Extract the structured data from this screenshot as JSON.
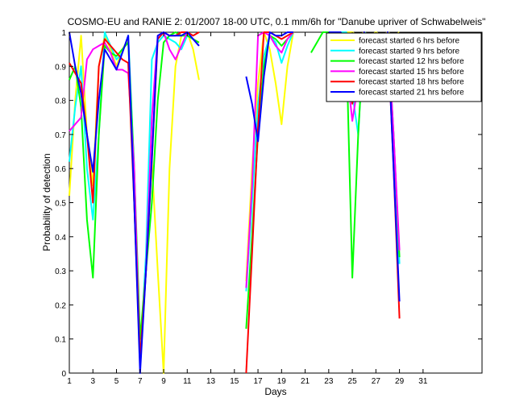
{
  "chart_data": {
    "type": "line",
    "title": "COSMO-EU and RANIE 2: 01/2007 18-00 UTC, 0.1 mm/6h for \"Danube upriver of Schwabelweis\"",
    "xlabel": "Days",
    "ylabel": "Probability of detection",
    "xlim": [
      1,
      36
    ],
    "ylim": [
      0,
      1
    ],
    "xticks": [
      1,
      3,
      5,
      7,
      9,
      11,
      13,
      15,
      17,
      19,
      21,
      23,
      25,
      27,
      29,
      31
    ],
    "yticks": [
      0,
      0.1,
      0.2,
      0.3,
      0.4,
      0.5,
      0.6,
      0.7,
      0.8,
      0.9,
      1
    ],
    "grid": false,
    "legend_position": "top-right",
    "x": [
      1,
      1.5,
      2,
      2.5,
      3,
      3.5,
      4,
      4.5,
      5,
      5.5,
      6,
      6.5,
      7,
      7.5,
      8,
      8.5,
      9,
      9.5,
      10,
      10.5,
      11,
      11.5,
      12,
      12.5,
      13,
      13.5,
      14,
      14.5,
      15,
      15.5,
      16,
      16.5,
      17,
      17.5,
      18,
      18.5,
      19,
      19.5,
      20,
      20.5,
      21,
      21.5,
      22,
      22.5,
      23,
      23.5,
      24,
      24.5,
      25,
      25.5,
      26,
      26.5,
      27,
      27.5,
      28,
      28.5,
      29,
      29.5,
      30,
      30.5,
      31
    ],
    "series": [
      {
        "name": "forecast started 6 hrs before",
        "color": "#ffff00",
        "values": [
          0.52,
          0.8,
          0.99,
          0.7,
          0.55,
          0.9,
          0.99,
          0.95,
          0.9,
          0.95,
          0.98,
          0.5,
          0.03,
          0.3,
          0.62,
          0.3,
          0.0,
          0.6,
          0.9,
          0.99,
          1.0,
          0.95,
          0.86,
          null,
          null,
          null,
          null,
          null,
          null,
          null,
          0.27,
          0.6,
          0.85,
          1.0,
          0.95,
          0.85,
          0.73,
          0.9,
          1.0,
          null,
          null,
          null,
          null,
          null,
          1.0,
          1.0,
          1.0,
          1.0,
          1.0,
          0.99,
          1.0,
          0.99,
          1.0,
          0.99,
          1.0,
          0.99,
          1.0,
          null,
          null,
          null,
          0.96
        ]
      },
      {
        "name": "forecast started 9 hrs before",
        "color": "#00ffff",
        "values": [
          0.62,
          0.78,
          0.9,
          0.6,
          0.45,
          0.7,
          1.0,
          0.96,
          0.92,
          0.94,
          0.99,
          0.6,
          0.04,
          0.35,
          0.92,
          0.97,
          0.99,
          0.98,
          0.97,
          0.95,
          0.99,
          0.98,
          0.96,
          null,
          null,
          null,
          null,
          null,
          null,
          null,
          0.24,
          0.5,
          0.79,
          0.93,
          0.99,
          0.97,
          0.91,
          0.96,
          1.0,
          null,
          null,
          null,
          null,
          null,
          1.0,
          1.0,
          1.0,
          1.0,
          0.82,
          0.7,
          1.0,
          0.99,
          0.97,
          0.98,
          1.0,
          0.7,
          0.32,
          null,
          null,
          null,
          null
        ]
      },
      {
        "name": "forecast started 12 hrs before",
        "color": "#00ff00",
        "values": [
          0.86,
          0.9,
          0.78,
          0.45,
          0.28,
          0.7,
          0.96,
          0.94,
          0.93,
          0.95,
          0.97,
          0.6,
          0.1,
          0.3,
          0.5,
          0.8,
          0.97,
          0.99,
          1.0,
          0.99,
          0.99,
          0.98,
          0.97,
          null,
          null,
          null,
          null,
          null,
          null,
          null,
          0.13,
          0.4,
          0.7,
          0.9,
          0.99,
          0.98,
          0.96,
          0.98,
          1.0,
          null,
          null,
          0.94,
          0.97,
          1.0,
          1.0,
          1.0,
          1.0,
          0.95,
          0.28,
          0.7,
          1.0,
          0.98,
          0.97,
          0.98,
          1.0,
          0.7,
          0.34,
          null,
          null,
          null,
          null
        ]
      },
      {
        "name": "forecast started 15 hrs before",
        "color": "#ff00ff",
        "values": [
          0.71,
          0.73,
          0.75,
          0.92,
          0.95,
          0.96,
          0.97,
          0.94,
          0.89,
          0.89,
          0.88,
          0.6,
          0.02,
          0.3,
          0.75,
          0.99,
          1.0,
          0.95,
          0.92,
          0.96,
          1.0,
          0.98,
          0.96,
          null,
          null,
          null,
          null,
          null,
          null,
          null,
          0.25,
          0.55,
          0.99,
          1.0,
          0.99,
          0.96,
          0.94,
          0.98,
          1.0,
          null,
          null,
          null,
          null,
          null,
          1.0,
          1.0,
          1.0,
          0.9,
          0.74,
          0.85,
          1.0,
          0.96,
          0.93,
          0.98,
          1.0,
          0.7,
          0.36,
          null,
          null,
          null,
          null
        ]
      },
      {
        "name": "forecast started 18 hrs before",
        "color": "#ff0000",
        "values": [
          0.91,
          0.88,
          0.85,
          0.7,
          0.5,
          0.9,
          0.98,
          0.96,
          0.94,
          0.92,
          0.91,
          0.5,
          0.04,
          0.3,
          0.62,
          0.98,
          1.0,
          0.99,
          0.99,
          1.0,
          1.0,
          0.99,
          1.0,
          null,
          null,
          null,
          null,
          null,
          null,
          null,
          0.0,
          0.35,
          0.72,
          1.0,
          1.0,
          0.99,
          0.98,
          0.99,
          1.0,
          null,
          null,
          null,
          null,
          null,
          1.0,
          1.0,
          1.0,
          0.95,
          0.79,
          0.9,
          1.0,
          0.95,
          0.9,
          0.95,
          1.0,
          0.6,
          0.16,
          null,
          null,
          null,
          null
        ]
      },
      {
        "name": "forecast started 21 hrs before",
        "color": "#0000ff",
        "values": [
          1.0,
          0.9,
          0.82,
          0.7,
          0.59,
          0.8,
          0.95,
          0.92,
          0.89,
          0.94,
          0.99,
          0.5,
          0.0,
          0.3,
          0.63,
          0.99,
          1.0,
          0.99,
          0.99,
          0.99,
          1.0,
          0.98,
          0.96,
          null,
          null,
          null,
          null,
          null,
          null,
          null,
          0.87,
          0.79,
          0.68,
          0.87,
          1.0,
          0.99,
          0.99,
          1.0,
          1.0,
          null,
          null,
          null,
          null,
          null,
          1.0,
          1.0,
          1.0,
          0.95,
          0.82,
          0.9,
          1.0,
          0.93,
          0.86,
          0.95,
          1.0,
          0.6,
          0.21,
          null,
          null,
          null,
          null
        ]
      }
    ]
  }
}
